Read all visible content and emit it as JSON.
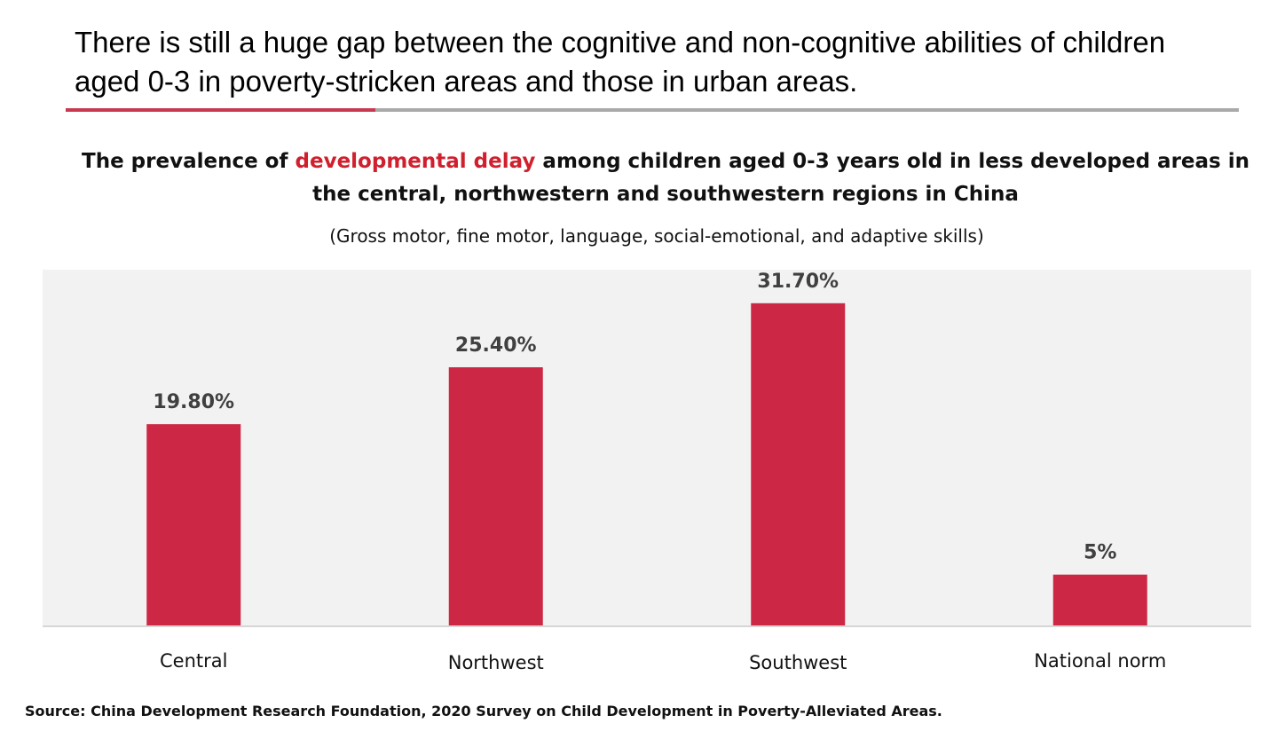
{
  "header": {
    "headline": "There is still a huge gap between the cognitive and non-cognitive abilities of children aged 0-3 in poverty-stricken areas and those in urban areas."
  },
  "chart_title": {
    "part1": "The prevalence of ",
    "highlight": "developmental delay",
    "part2": " among children aged 0-3 years old in less developed areas in the central, northwestern and southwestern regions in China"
  },
  "chart_subtitle": "(Gross motor, fine motor, language, social-emotional, and adaptive skills)",
  "source": "Source: China Development Research Foundation, 2020 Survey on Child Development in Poverty-Alleviated Areas.",
  "colors": {
    "bar": "#cc2845",
    "plot_background": "#f2f2f2",
    "highlight": "#d0202e",
    "accent_rule": "#c8394f"
  },
  "chart_data": {
    "type": "bar",
    "categories": [
      "Central",
      "Northwest",
      "Southwest",
      "National norm"
    ],
    "values": [
      19.8,
      25.4,
      31.7,
      5
    ],
    "value_labels": [
      "19.80%",
      "25.40%",
      "31.70%",
      "5%"
    ],
    "title": "The prevalence of developmental delay among children aged 0-3 years old in less developed areas in the central, northwestern and southwestern regions in China",
    "subtitle": "(Gross motor, fine motor, language, social-emotional, and adaptive skills)",
    "xlabel": "",
    "ylabel": "",
    "ylim": [
      0,
      35
    ],
    "grid": false,
    "legend": "none"
  }
}
